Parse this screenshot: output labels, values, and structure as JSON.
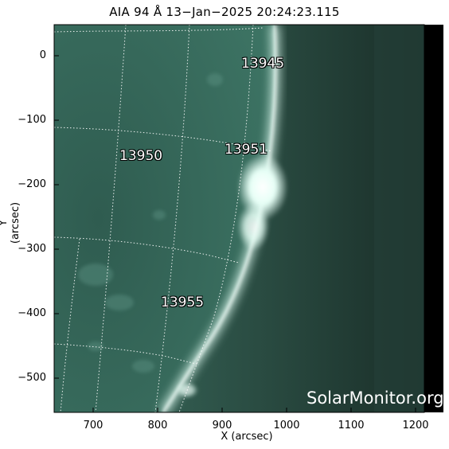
{
  "title": "AIA 94 Å 13−Jan−2025 20:24:23.115",
  "axes": {
    "xlabel": "X (arcsec)",
    "ylabel": "Y (arcsec)",
    "xticks": [
      "700",
      "800",
      "900",
      "1000",
      "1100",
      "1200"
    ],
    "yticks": [
      "0",
      "−100",
      "−200",
      "−300",
      "−400",
      "−500"
    ]
  },
  "regions": [
    {
      "label": "13945"
    },
    {
      "label": "13950"
    },
    {
      "label": "13951"
    },
    {
      "label": "13955"
    }
  ],
  "watermark": "SolarMonitor.org",
  "colors": {
    "disk": "#2e5a4e",
    "limb": "#e8fbf3",
    "space": "#1a2e28",
    "edge": "#000000"
  }
}
